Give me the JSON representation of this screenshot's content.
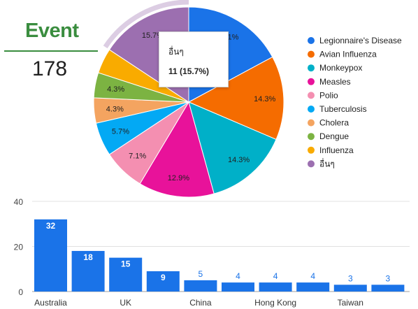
{
  "scorecard": {
    "title": "Event",
    "value": "178"
  },
  "tooltip": {
    "name": "อื่นๆ",
    "value": "11 (15.7%)"
  },
  "colors": {
    "Legionnaire's Disease": "#1a73e8",
    "Avian Influenza": "#f56c00",
    "Monkeypox": "#00b0c8",
    "Measles": "#e8129a",
    "Polio": "#f48fb1",
    "Tuberculosis": "#03a9f4",
    "Cholera": "#f4a460",
    "Dengue": "#7cb342",
    "Influenza": "#f9ab00",
    "อื่นๆ": "#9c6fb0",
    "bar": "#1a73e8"
  },
  "chart_data": [
    {
      "type": "pie",
      "labels": [
        "Legionnaire's Disease",
        "Avian Influenza",
        "Monkeypox",
        "Measles",
        "Polio",
        "Tuberculosis",
        "Cholera",
        "Dengue",
        "Influenza",
        "อื่นๆ"
      ],
      "values": [
        12,
        10,
        10,
        9,
        5,
        4,
        3,
        3,
        3,
        11
      ],
      "slice_labels": [
        "17.1%",
        "14.3%",
        "14.3%",
        "12.9%",
        "7.1%",
        "5.7%",
        "4.3%",
        "4.3%",
        "",
        "15.7%"
      ],
      "highlighted": "อื่นๆ",
      "legend": "right"
    },
    {
      "type": "bar",
      "categories": [
        "Australia",
        "",
        "UK",
        "",
        "China",
        "",
        "Hong Kong",
        "",
        "Taiwan",
        ""
      ],
      "values": [
        32,
        18,
        15,
        9,
        5,
        4,
        4,
        4,
        3,
        3
      ],
      "ylim": [
        0,
        40
      ],
      "yticks": [
        "0",
        "20",
        "40"
      ],
      "grid": true
    }
  ]
}
